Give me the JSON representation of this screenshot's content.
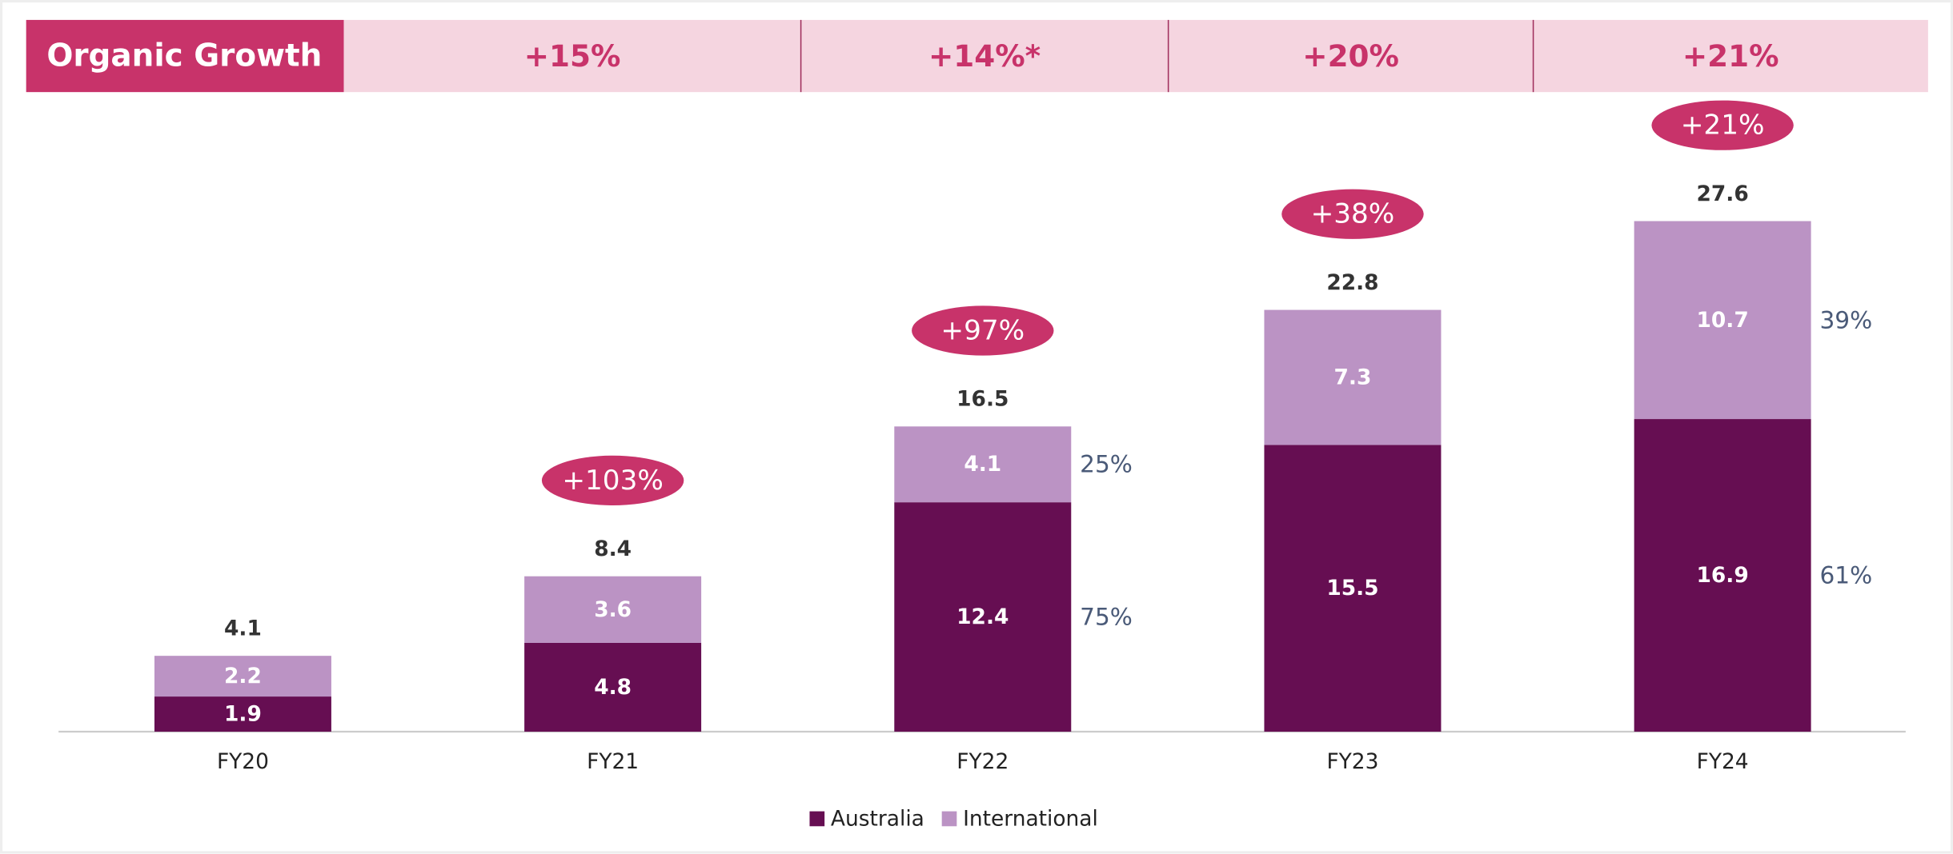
{
  "chart_data": {
    "type": "stacked_bar",
    "categories": [
      "FY20",
      "FY21",
      "FY22",
      "FY23",
      "FY24"
    ],
    "series": [
      {
        "name": "Australia",
        "color": "#660e52",
        "values": [
          1.9,
          4.8,
          12.4,
          15.5,
          16.9
        ]
      },
      {
        "name": "International",
        "color": "#bb93c4",
        "values": [
          2.2,
          3.6,
          4.1,
          7.3,
          10.7
        ]
      }
    ],
    "totals": [
      4.1,
      8.4,
      16.5,
      22.8,
      27.6
    ],
    "growth": {
      "values": [
        null,
        103,
        97,
        38,
        21
      ],
      "value_labels": [
        null,
        "+103%",
        "+97%",
        "+38%",
        "+21%"
      ],
      "color": "#c8336a"
    },
    "shares": [
      {
        "values": [
          null,
          null,
          75,
          null,
          61
        ],
        "value_labels": [
          null,
          null,
          "75%",
          null,
          "61%"
        ]
      },
      {
        "values": [
          null,
          null,
          25,
          null,
          39
        ],
        "value_labels": [
          null,
          null,
          "25%",
          null,
          "39%"
        ]
      }
    ],
    "organic_growth": {
      "label": "Organic Growth",
      "values": [
        15,
        14,
        20,
        21
      ],
      "value_labels": [
        "+15%",
        "+14%*",
        "+20%",
        "+21%"
      ]
    },
    "ylim": [
      0,
      30
    ],
    "legend": "bottom"
  }
}
